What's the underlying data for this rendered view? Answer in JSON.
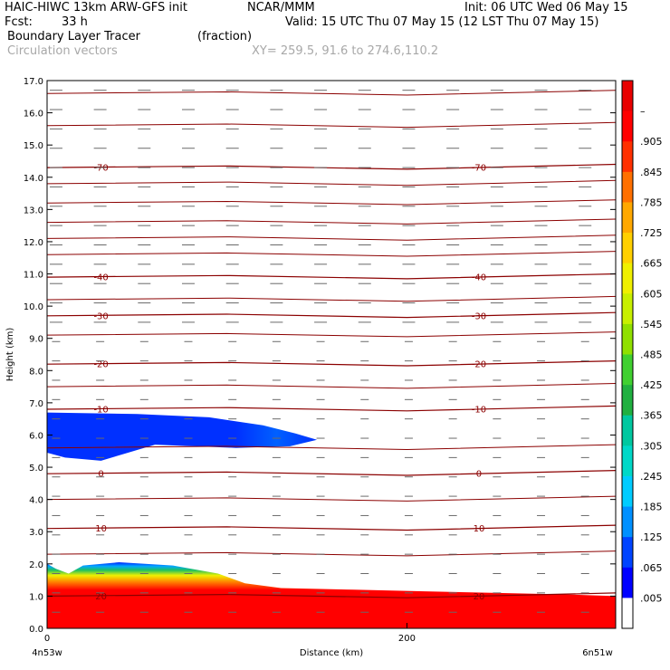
{
  "header": {
    "model": "HAIC-HIWC 13km ARW-GFS init",
    "org": "NCAR/MMM",
    "init": "Init: 06 UTC Wed 06 May 15",
    "fcst_label": "Fcst:",
    "fcst_value": "33 h",
    "valid": "Valid: 15 UTC Thu 07 May 15 (12 LST Thu 07 May 15)",
    "field": "Boundary Layer Tracer",
    "units": "(fraction)",
    "vectors": "Circulation vectors",
    "xy": "XY= 259.5, 91.6 to 274.6,110.2"
  },
  "chart_data": {
    "type": "heatmap",
    "title": "Boundary Layer Tracer",
    "units": "(fraction)",
    "xlabel": "Distance (km)",
    "ylabel": "Height (km)",
    "xlim": [
      0,
      316
    ],
    "ylim": [
      0,
      17
    ],
    "x_ticks": [
      {
        "value": 0,
        "label": "0"
      },
      {
        "value": 200,
        "label": "200"
      }
    ],
    "x_end_labels": {
      "left": "4n53w",
      "right": "6n51w"
    },
    "y_ticks": [
      "0.0",
      "1.0",
      "2.0",
      "3.0",
      "4.0",
      "5.0",
      "6.0",
      "7.0",
      "8.0",
      "9.0",
      "10.0",
      "11.0",
      "12.0",
      "13.0",
      "14.0",
      "15.0",
      "16.0",
      "17.0"
    ],
    "colorbar": {
      "labels": [
        ".005",
        ".065",
        ".125",
        ".185",
        ".245",
        ".305",
        ".365",
        ".425",
        ".485",
        ".545",
        ".605",
        ".665",
        ".725",
        ".785",
        ".845",
        ".905",
        "–"
      ],
      "colors": [
        "#ffffff",
        "#0000ff",
        "#0044ff",
        "#0090ff",
        "#00ccff",
        "#00d8c8",
        "#00c8a0",
        "#20b040",
        "#40d030",
        "#90e000",
        "#c8f000",
        "#f0f000",
        "#ffd000",
        "#ffa800",
        "#ff7000",
        "#ff3000",
        "#ff0000",
        "#e80000"
      ]
    },
    "temperature_contours": [
      {
        "label": "-70",
        "height_km": 14.3
      },
      {
        "label": "-40",
        "height_km": 10.9
      },
      {
        "label": "-30",
        "height_km": 9.7
      },
      {
        "label": "-20",
        "height_km": 8.2
      },
      {
        "label": "-10",
        "height_km": 6.8
      },
      {
        "label": "0",
        "height_km": 4.8
      },
      {
        "label": "10",
        "height_km": 3.1
      },
      {
        "label": "20",
        "height_km": 1.0
      }
    ],
    "tracer_regions": [
      {
        "name": "elevated layer",
        "x_range_km": [
          0,
          150
        ],
        "height_range_km": [
          5.2,
          6.7
        ],
        "value": 0.065
      },
      {
        "name": "boundary layer",
        "x_range_km": [
          0,
          316
        ],
        "height_range_km": [
          0,
          2.0
        ],
        "value": 0.905
      }
    ]
  }
}
